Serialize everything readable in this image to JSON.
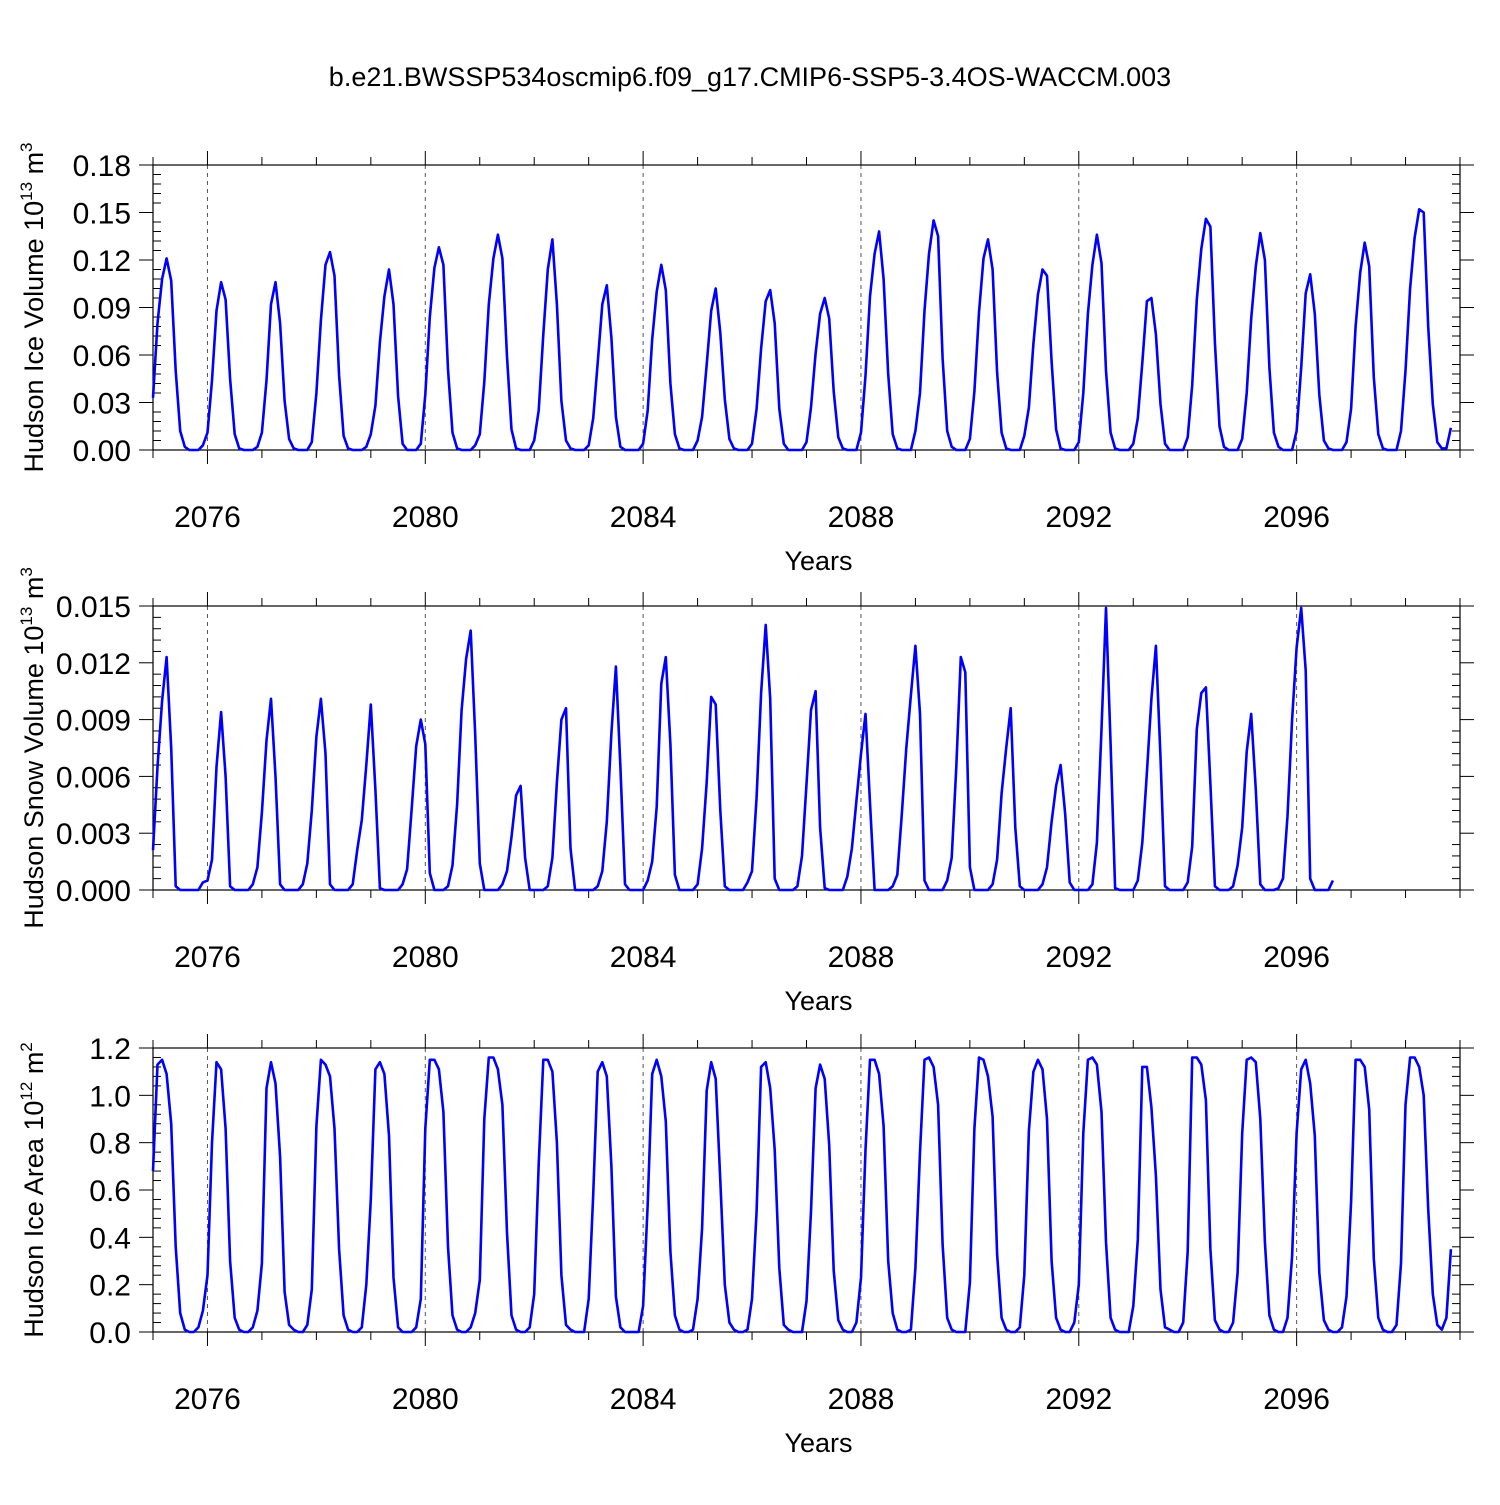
{
  "figure": {
    "title": "b.e21.BWSSP534oscmip6.f09_g17.CMIP6-SSP5-3.4OS-WACCM.003",
    "line_color": "#0000ff",
    "axis_color": "#000000"
  },
  "chart_data": [
    {
      "type": "line",
      "ylabel": "Hudson Ice Volume 10",
      "ylabel_exponent": "13",
      "ylabel_unit": " m",
      "ylabel_unit_exponent": "3",
      "xlabel": "Years",
      "xlim": [
        2075.0,
        2099.0
      ],
      "ylim": [
        0,
        0.18
      ],
      "x_ticks": [
        2076,
        2080,
        2084,
        2088,
        2092,
        2096
      ],
      "x_tick_labels": [
        "2076",
        "2080",
        "2084",
        "2088",
        "2092",
        "2096"
      ],
      "y_ticks": [
        0.0,
        0.03,
        0.06,
        0.09,
        0.12,
        0.15,
        0.18
      ],
      "y_tick_labels": [
        "0.00",
        "0.03",
        "0.06",
        "0.09",
        "0.12",
        "0.15",
        "0.18"
      ],
      "gridlines_x": [
        2076,
        2080,
        2084,
        2088,
        2092,
        2096
      ],
      "series": [
        {
          "start": 2075.0,
          "step_months": 1,
          "peaks": [
            0.121,
            0.106,
            0.106,
            0.125,
            0.114,
            0.128,
            0.136,
            0.133,
            0.104,
            0.117,
            0.102,
            0.101,
            0.096,
            0.138,
            0.145,
            0.133,
            0.114,
            0.136,
            0.096,
            0.146,
            0.137,
            0.111,
            0.131,
            0.152
          ],
          "values": [
            0.033,
            0.08,
            0.108,
            0.121,
            0.107,
            0.05,
            0.012,
            0.002,
            0.0,
            0.0,
            0.0,
            0.003,
            0.011,
            0.044,
            0.088,
            0.106,
            0.095,
            0.045,
            0.01,
            0.001,
            0.0,
            0.0,
            0.0,
            0.002,
            0.011,
            0.044,
            0.092,
            0.106,
            0.08,
            0.031,
            0.007,
            0.001,
            0.0,
            0.0,
            0.0,
            0.005,
            0.036,
            0.082,
            0.117,
            0.125,
            0.11,
            0.047,
            0.009,
            0.001,
            0.0,
            0.0,
            0.0,
            0.002,
            0.01,
            0.028,
            0.068,
            0.097,
            0.114,
            0.092,
            0.034,
            0.004,
            0.0,
            0.0,
            0.0,
            0.004,
            0.035,
            0.084,
            0.115,
            0.128,
            0.117,
            0.051,
            0.011,
            0.001,
            0.0,
            0.0,
            0.0,
            0.003,
            0.01,
            0.043,
            0.092,
            0.121,
            0.136,
            0.121,
            0.059,
            0.013,
            0.001,
            0.0,
            0.0,
            0.0,
            0.006,
            0.025,
            0.073,
            0.114,
            0.133,
            0.092,
            0.031,
            0.006,
            0.001,
            0.0,
            0.0,
            0.0,
            0.003,
            0.02,
            0.055,
            0.092,
            0.104,
            0.071,
            0.021,
            0.002,
            0.0,
            0.0,
            0.0,
            0.0,
            0.004,
            0.025,
            0.07,
            0.1,
            0.117,
            0.101,
            0.042,
            0.01,
            0.001,
            0.0,
            0.0,
            0.0,
            0.006,
            0.021,
            0.054,
            0.088,
            0.102,
            0.074,
            0.032,
            0.007,
            0.001,
            0.0,
            0.0,
            0.0,
            0.004,
            0.026,
            0.064,
            0.094,
            0.101,
            0.08,
            0.026,
            0.004,
            0.0,
            0.0,
            0.0,
            0.0,
            0.005,
            0.027,
            0.061,
            0.086,
            0.096,
            0.083,
            0.037,
            0.008,
            0.001,
            0.0,
            0.0,
            0.0,
            0.011,
            0.047,
            0.097,
            0.124,
            0.138,
            0.108,
            0.048,
            0.01,
            0.001,
            0.0,
            0.0,
            0.0,
            0.012,
            0.036,
            0.088,
            0.124,
            0.145,
            0.135,
            0.058,
            0.012,
            0.002,
            0.0,
            0.0,
            0.0,
            0.007,
            0.037,
            0.087,
            0.121,
            0.133,
            0.114,
            0.049,
            0.011,
            0.001,
            0.0,
            0.0,
            0.0,
            0.009,
            0.027,
            0.067,
            0.098,
            0.114,
            0.11,
            0.056,
            0.013,
            0.001,
            0.0,
            0.0,
            0.0,
            0.005,
            0.036,
            0.086,
            0.117,
            0.136,
            0.118,
            0.05,
            0.011,
            0.001,
            0.0,
            0.0,
            0.0,
            0.004,
            0.02,
            0.055,
            0.094,
            0.096,
            0.073,
            0.029,
            0.004,
            0.0,
            0.0,
            0.0,
            0.0,
            0.008,
            0.041,
            0.095,
            0.127,
            0.146,
            0.141,
            0.068,
            0.015,
            0.002,
            0.0,
            0.0,
            0.0,
            0.007,
            0.036,
            0.083,
            0.116,
            0.137,
            0.12,
            0.052,
            0.011,
            0.002,
            0.0,
            0.0,
            0.0,
            0.012,
            0.052,
            0.099,
            0.111,
            0.086,
            0.035,
            0.006,
            0.001,
            0.0,
            0.0,
            0.0,
            0.005,
            0.026,
            0.078,
            0.112,
            0.131,
            0.116,
            0.046,
            0.01,
            0.001,
            0.0,
            0.0,
            0.0,
            0.012,
            0.05,
            0.102,
            0.134,
            0.152,
            0.15,
            0.078,
            0.029,
            0.005,
            0.001,
            0.001,
            0.014
          ]
        }
      ]
    },
    {
      "type": "line",
      "ylabel": "Hudson Snow Volume 10",
      "ylabel_exponent": "13",
      "ylabel_unit": " m",
      "ylabel_unit_exponent": "3",
      "xlabel": "Years",
      "xlim": [
        2075.0,
        2099.0
      ],
      "ylim": [
        0,
        0.015
      ],
      "x_ticks": [
        2076,
        2080,
        2084,
        2088,
        2092,
        2096
      ],
      "x_tick_labels": [
        "2076",
        "2080",
        "2084",
        "2088",
        "2092",
        "2096"
      ],
      "y_ticks": [
        0.0,
        0.003,
        0.006,
        0.009,
        0.012,
        0.015
      ],
      "y_tick_labels": [
        "0.000",
        "0.003",
        "0.006",
        "0.009",
        "0.012",
        "0.015"
      ],
      "gridlines_x": [
        2076,
        2080,
        2084,
        2088,
        2092,
        2096
      ],
      "series": [
        {
          "start": 2075.0,
          "step_months": 1,
          "values": [
            0.0021,
            0.0065,
            0.01,
            0.0123,
            0.0075,
            0.0002,
            0.0,
            0.0,
            0.0,
            0.0,
            0.0,
            0.0004,
            0.0005,
            0.0016,
            0.0065,
            0.0094,
            0.006,
            0.0002,
            0.0,
            0.0,
            0.0,
            0.0,
            0.0003,
            0.0012,
            0.0041,
            0.0079,
            0.0101,
            0.006,
            0.0003,
            0.0,
            0.0,
            0.0,
            0.0,
            0.0003,
            0.0014,
            0.0042,
            0.0081,
            0.0101,
            0.0072,
            0.0003,
            0.0,
            0.0,
            0.0,
            0.0,
            0.0003,
            0.0021,
            0.0037,
            0.0066,
            0.0098,
            0.0053,
            0.0001,
            0.0,
            0.0,
            0.0,
            0.0,
            0.0003,
            0.0011,
            0.0043,
            0.0076,
            0.009,
            0.0077,
            0.0009,
            0.0,
            0.0,
            0.0,
            0.0002,
            0.0013,
            0.0045,
            0.0095,
            0.0122,
            0.0137,
            0.0082,
            0.0014,
            0.0,
            0.0,
            0.0,
            0.0,
            0.0003,
            0.001,
            0.0028,
            0.005,
            0.0055,
            0.0017,
            0.0,
            0.0,
            0.0,
            0.0,
            0.0002,
            0.0017,
            0.0057,
            0.009,
            0.0096,
            0.0022,
            0.0,
            0.0,
            0.0,
            0.0,
            0.0,
            0.0002,
            0.001,
            0.0036,
            0.0083,
            0.0118,
            0.0065,
            0.0003,
            0.0,
            0.0,
            0.0,
            0.0,
            0.0005,
            0.0015,
            0.0044,
            0.0109,
            0.0123,
            0.0077,
            0.0008,
            0.0,
            0.0,
            0.0,
            0.0,
            0.0003,
            0.0022,
            0.0057,
            0.0102,
            0.0098,
            0.0042,
            0.0002,
            0.0,
            0.0,
            0.0,
            0.0,
            0.0004,
            0.001,
            0.0049,
            0.0104,
            0.014,
            0.0101,
            0.0006,
            0.0,
            0.0,
            0.0,
            0.0,
            0.0002,
            0.0018,
            0.0056,
            0.0095,
            0.0105,
            0.0033,
            0.0001,
            0.0,
            0.0,
            0.0,
            0.0,
            0.0007,
            0.0022,
            0.0047,
            0.0072,
            0.0093,
            0.0046,
            0.0,
            0.0,
            0.0,
            0.0,
            0.0002,
            0.0008,
            0.004,
            0.0075,
            0.0103,
            0.0129,
            0.0093,
            0.0005,
            0.0,
            0.0,
            0.0,
            0.0,
            0.0005,
            0.0017,
            0.0065,
            0.0123,
            0.0115,
            0.0012,
            0.0,
            0.0,
            0.0,
            0.0,
            0.0003,
            0.0016,
            0.0051,
            0.0075,
            0.0096,
            0.0033,
            0.0002,
            0.0,
            0.0,
            0.0,
            0.0,
            0.0003,
            0.0012,
            0.0036,
            0.0055,
            0.0066,
            0.004,
            0.0004,
            0.0,
            0.0,
            0.0,
            0.0,
            0.0003,
            0.0025,
            0.0085,
            0.0149,
            0.0077,
            0.0001,
            0.0,
            0.0,
            0.0,
            0.0,
            0.0005,
            0.0025,
            0.0062,
            0.0101,
            0.0129,
            0.007,
            0.0002,
            0.0,
            0.0,
            0.0,
            0.0,
            0.0004,
            0.0023,
            0.0085,
            0.0104,
            0.0107,
            0.0056,
            0.0002,
            0.0,
            0.0,
            0.0,
            0.0002,
            0.0013,
            0.0033,
            0.0073,
            0.0093,
            0.0053,
            0.0003,
            0.0,
            0.0,
            0.0,
            0.0001,
            0.0006,
            0.0039,
            0.009,
            0.0128,
            0.0149,
            0.0116,
            0.0006,
            0.0,
            0.0,
            0.0,
            0.0,
            0.0005
          ]
        }
      ]
    },
    {
      "type": "line",
      "ylabel": "Hudson Ice Area 10",
      "ylabel_exponent": "12",
      "ylabel_unit": " m",
      "ylabel_unit_exponent": "2",
      "xlabel": "Years",
      "xlim": [
        2075.0,
        2099.0
      ],
      "ylim": [
        0,
        1.2
      ],
      "x_ticks": [
        2076,
        2080,
        2084,
        2088,
        2092,
        2096
      ],
      "x_tick_labels": [
        "2076",
        "2080",
        "2084",
        "2088",
        "2092",
        "2096"
      ],
      "y_ticks": [
        0.0,
        0.2,
        0.4,
        0.6,
        0.8,
        1.0,
        1.2
      ],
      "y_tick_labels": [
        "0.0",
        "0.2",
        "0.4",
        "0.6",
        "0.8",
        "1.0",
        "1.2"
      ],
      "gridlines_x": [
        2076,
        2080,
        2084,
        2088,
        2092,
        2096
      ],
      "series": [
        {
          "start": 2075.0,
          "step_months": 1,
          "values": [
            0.68,
            1.13,
            1.15,
            1.09,
            0.88,
            0.36,
            0.08,
            0.01,
            0.0,
            0.0,
            0.02,
            0.09,
            0.24,
            0.8,
            1.14,
            1.11,
            0.86,
            0.3,
            0.06,
            0.01,
            0.0,
            0.0,
            0.02,
            0.09,
            0.29,
            1.03,
            1.14,
            1.05,
            0.74,
            0.17,
            0.03,
            0.01,
            0.0,
            0.0,
            0.03,
            0.18,
            0.87,
            1.15,
            1.13,
            1.08,
            0.86,
            0.35,
            0.07,
            0.01,
            0.0,
            0.0,
            0.02,
            0.2,
            0.56,
            1.11,
            1.14,
            1.09,
            0.83,
            0.23,
            0.02,
            0.0,
            0.0,
            0.0,
            0.02,
            0.14,
            0.86,
            1.15,
            1.15,
            1.11,
            0.93,
            0.36,
            0.07,
            0.01,
            0.0,
            0.0,
            0.02,
            0.08,
            0.22,
            0.9,
            1.16,
            1.16,
            1.11,
            0.96,
            0.42,
            0.07,
            0.01,
            0.0,
            0.0,
            0.02,
            0.16,
            0.71,
            1.15,
            1.15,
            1.1,
            0.8,
            0.24,
            0.03,
            0.01,
            0.0,
            0.0,
            0.0,
            0.14,
            0.58,
            1.1,
            1.14,
            1.08,
            0.7,
            0.15,
            0.02,
            0.0,
            0.0,
            0.0,
            0.0,
            0.11,
            0.54,
            1.09,
            1.15,
            1.08,
            0.89,
            0.34,
            0.07,
            0.01,
            0.0,
            0.0,
            0.01,
            0.14,
            0.44,
            1.02,
            1.14,
            1.07,
            0.64,
            0.2,
            0.04,
            0.01,
            0.0,
            0.0,
            0.01,
            0.14,
            0.51,
            1.12,
            1.14,
            1.03,
            0.77,
            0.27,
            0.03,
            0.01,
            0.0,
            0.0,
            0.0,
            0.13,
            0.51,
            1.03,
            1.13,
            1.07,
            0.79,
            0.26,
            0.05,
            0.01,
            0.0,
            0.0,
            0.04,
            0.23,
            0.77,
            1.15,
            1.15,
            1.09,
            0.87,
            0.3,
            0.08,
            0.01,
            0.0,
            0.0,
            0.01,
            0.27,
            0.76,
            1.15,
            1.16,
            1.12,
            0.96,
            0.37,
            0.06,
            0.01,
            0.0,
            0.0,
            0.0,
            0.21,
            0.86,
            1.16,
            1.15,
            1.08,
            0.91,
            0.33,
            0.06,
            0.01,
            0.0,
            0.0,
            0.02,
            0.24,
            0.85,
            1.1,
            1.15,
            1.11,
            0.9,
            0.3,
            0.06,
            0.01,
            0.0,
            0.0,
            0.04,
            0.2,
            0.84,
            1.15,
            1.16,
            1.13,
            0.93,
            0.38,
            0.06,
            0.01,
            0.0,
            0.0,
            0.0,
            0.11,
            0.39,
            1.12,
            1.12,
            0.95,
            0.66,
            0.18,
            0.02,
            0.01,
            0.0,
            0.0,
            0.04,
            0.34,
            1.16,
            1.16,
            1.13,
            0.98,
            0.35,
            0.05,
            0.01,
            0.0,
            0.0,
            0.04,
            0.25,
            0.84,
            1.15,
            1.16,
            1.14,
            0.9,
            0.38,
            0.07,
            0.01,
            0.0,
            0.0,
            0.06,
            0.32,
            0.84,
            1.11,
            1.15,
            1.05,
            0.83,
            0.25,
            0.05,
            0.01,
            0.0,
            0.0,
            0.02,
            0.15,
            0.55,
            1.15,
            1.15,
            1.12,
            0.94,
            0.31,
            0.06,
            0.01,
            0.0,
            0.0,
            0.03,
            0.29,
            0.96,
            1.16,
            1.16,
            1.12,
            1.0,
            0.52,
            0.16,
            0.03,
            0.01,
            0.06,
            0.35
          ]
        }
      ]
    }
  ]
}
